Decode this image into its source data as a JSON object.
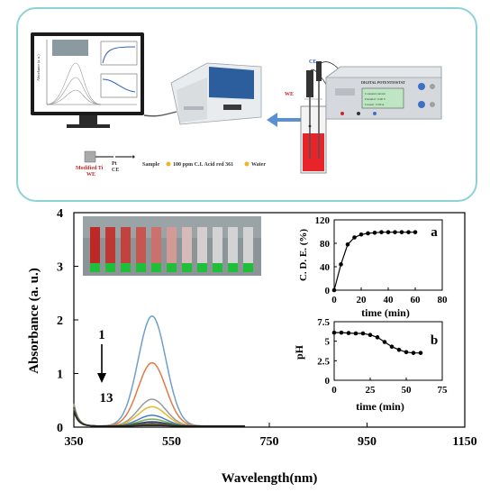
{
  "schematic": {
    "monitor": {
      "mini_chart": {
        "ylabel": "Absorbance (a. u.)",
        "xticks": [
          "350",
          "550",
          "750",
          "950",
          "1150"
        ],
        "yticks": [
          "0",
          "1",
          "2",
          "3",
          "4"
        ],
        "inset_top_label": "a",
        "inset_bottom_label": "b",
        "inset_xlabel": "time (min)",
        "inset_bottom_ylabel": "pH"
      }
    },
    "potentiostat_title": "DIGITAL POTENTIOSTAT",
    "potentiostat_screen_lines": [
      "Constant Current",
      "Potential : 0.00 V",
      "Current : 0.00 A"
    ],
    "electrode_labels": {
      "ce_top": "CE",
      "we": "WE"
    },
    "labels": {
      "modified_ti": "Modified Ti",
      "modified_ti_we": "WE",
      "pt": "Pt",
      "pt_ce": "CE",
      "sample_prefix": "Sample",
      "sample_dye": "100 ppm C.I. Acid red 361",
      "water": "Water"
    },
    "colors": {
      "border": "#8ed2d8",
      "arrow": "#5b8fd6",
      "solution": "#e8242a",
      "label_red": "#c0282a"
    }
  },
  "chart_data": [
    {
      "type": "line",
      "xlabel": "Wavelength(nm)",
      "ylabel": "Absorbance (a. u.)",
      "xlim": [
        350,
        1150
      ],
      "ylim": [
        0,
        4
      ],
      "xticks": [
        "350",
        "550",
        "750",
        "950",
        "1150"
      ],
      "yticks": [
        "0",
        "1",
        "2",
        "3",
        "4"
      ],
      "annotation": {
        "from": "1",
        "to": "13"
      },
      "series": [
        {
          "peak": 2.05,
          "color": "#6ea0cc"
        },
        {
          "peak": 1.18,
          "color": "#e07a44"
        },
        {
          "peak": 0.5,
          "color": "#9a9a9a"
        },
        {
          "peak": 0.36,
          "color": "#e6b92f"
        },
        {
          "peak": 0.2,
          "color": "#4d78c2"
        },
        {
          "peak": 0.13,
          "color": "#6fb04c"
        },
        {
          "peak": 0.08,
          "color": "#1f3f78"
        },
        {
          "peak": 0.05,
          "color": "#8a3f23"
        },
        {
          "peak": 0.04,
          "color": "#5b5b5b"
        },
        {
          "peak": 0.03,
          "color": "#8c6b13"
        },
        {
          "peak": 0.02,
          "color": "#2f5597"
        },
        {
          "peak": 0.015,
          "color": "#3f7a2b"
        },
        {
          "peak": 0.01,
          "color": "#222222"
        }
      ],
      "peak_wavelength": 510,
      "photo": {
        "vials": 11,
        "solution_colors": [
          "#c0221f",
          "#c2322c",
          "#c43e38",
          "#c9524c",
          "#cf6f6a",
          "#d69a96",
          "#d9bcbb",
          "#d8d1d1",
          "#d6d6d6",
          "#d6d6d6",
          "#d6d6d6"
        ]
      }
    },
    {
      "type": "scatter",
      "label": "a",
      "xlabel": "time (min)",
      "ylabel": "C. D. E. (%)",
      "xlim": [
        0,
        80
      ],
      "ylim": [
        0,
        120
      ],
      "xticks": [
        "0",
        "20",
        "40",
        "60",
        "80"
      ],
      "yticks": [
        "0",
        "20",
        "40",
        "60",
        "80",
        "100",
        "120"
      ],
      "x": [
        0,
        5,
        10,
        15,
        20,
        25,
        30,
        35,
        40,
        45,
        50,
        55,
        60
      ],
      "y": [
        0,
        44,
        78,
        90,
        95,
        97,
        98,
        99,
        99,
        99,
        99,
        99,
        99
      ]
    },
    {
      "type": "line",
      "label": "b",
      "xlabel": "time (min)",
      "ylabel": "pH",
      "xlim": [
        0,
        75
      ],
      "ylim": [
        0,
        7.5
      ],
      "xticks": [
        "0",
        "25",
        "50",
        "75"
      ],
      "yticks": [
        "0",
        "2.5",
        "5",
        "7.5"
      ],
      "x": [
        0,
        5,
        10,
        15,
        20,
        25,
        30,
        35,
        40,
        45,
        50,
        55,
        60
      ],
      "y": [
        6.1,
        6.1,
        6.05,
        6.0,
        6.0,
        5.8,
        5.5,
        4.9,
        4.3,
        3.9,
        3.6,
        3.5,
        3.5
      ]
    }
  ]
}
